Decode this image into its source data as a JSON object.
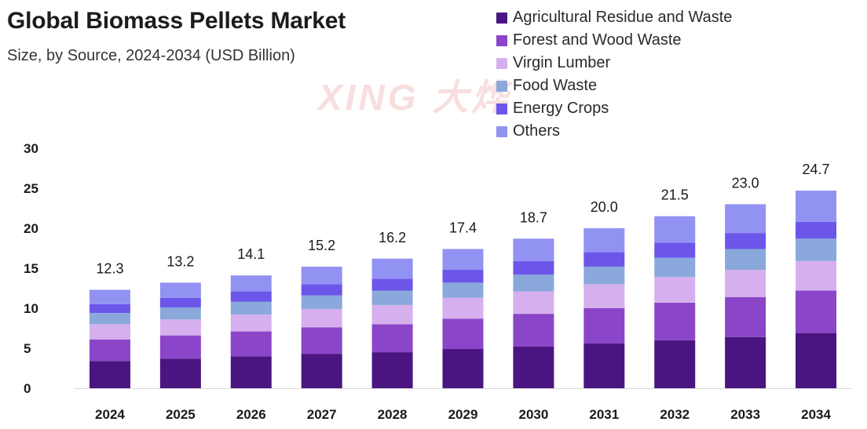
{
  "chart_data": {
    "type": "bar",
    "stacked": true,
    "title": "Global Biomass Pellets Market",
    "subtitle": "Size, by Source, 2024-2034 (USD Billion)",
    "watermark": "XING 大烨",
    "categories": [
      "2024",
      "2025",
      "2026",
      "2027",
      "2028",
      "2029",
      "2030",
      "2031",
      "2032",
      "2033",
      "2034"
    ],
    "totals": [
      12.3,
      13.2,
      14.1,
      15.2,
      16.2,
      17.4,
      18.7,
      20.0,
      21.5,
      23.0,
      24.7
    ],
    "total_labels": [
      "12.3",
      "13.2",
      "14.1",
      "15.2",
      "16.2",
      "17.4",
      "18.7",
      "20.0",
      "21.5",
      "23.0",
      "24.7"
    ],
    "series": [
      {
        "name": "Agricultural Residue and Waste",
        "color": "#4a1580",
        "values": [
          3.4,
          3.7,
          4.0,
          4.3,
          4.5,
          4.9,
          5.2,
          5.6,
          6.0,
          6.4,
          6.9
        ]
      },
      {
        "name": "Forest and Wood Waste",
        "color": "#8a45c8",
        "values": [
          2.7,
          2.9,
          3.1,
          3.3,
          3.5,
          3.8,
          4.1,
          4.4,
          4.7,
          5.0,
          5.3
        ]
      },
      {
        "name": "Virgin Lumber",
        "color": "#d6b0ee",
        "values": [
          1.9,
          2.0,
          2.1,
          2.3,
          2.4,
          2.6,
          2.8,
          3.0,
          3.2,
          3.4,
          3.7
        ]
      },
      {
        "name": "Food Waste",
        "color": "#8aa8dc",
        "values": [
          1.4,
          1.5,
          1.6,
          1.7,
          1.8,
          1.9,
          2.1,
          2.2,
          2.4,
          2.6,
          2.8
        ]
      },
      {
        "name": "Energy Crops",
        "color": "#6c56ea",
        "values": [
          1.1,
          1.2,
          1.3,
          1.4,
          1.5,
          1.6,
          1.7,
          1.8,
          1.9,
          2.0,
          2.1
        ]
      },
      {
        "name": "Others",
        "color": "#9292f2",
        "values": [
          1.8,
          1.9,
          2.0,
          2.2,
          2.5,
          2.6,
          2.8,
          3.0,
          3.3,
          3.6,
          3.9
        ]
      }
    ],
    "ylim": [
      0,
      30
    ],
    "yticks": [
      0,
      5,
      10,
      15,
      20,
      25,
      30
    ],
    "ytick_labels": [
      "0",
      "5",
      "10",
      "15",
      "20",
      "25",
      "30"
    ],
    "xlabel": "",
    "ylabel": "",
    "legend_position": "top-right"
  }
}
